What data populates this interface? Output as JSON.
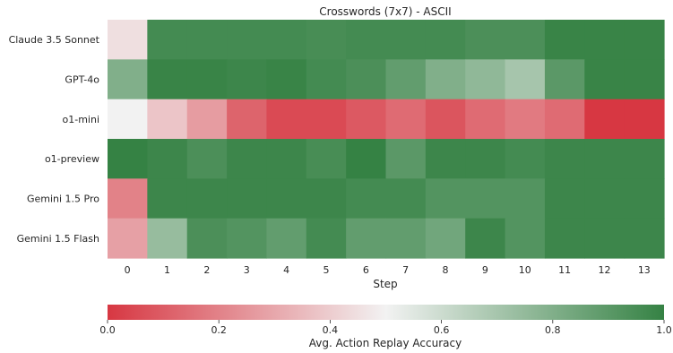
{
  "chart_data": {
    "type": "heatmap",
    "title": "Crosswords (7x7) - ASCII",
    "xlabel": "Step",
    "ylabel": "",
    "x": [
      "0",
      "1",
      "2",
      "3",
      "4",
      "5",
      "6",
      "7",
      "8",
      "9",
      "10",
      "11",
      "12",
      "13"
    ],
    "y": [
      "Claude 3.5 Sonnet",
      "GPT-4o",
      "o1-mini",
      "o1-preview",
      "Gemini 1.5 Pro",
      "Gemini 1.5 Flash"
    ],
    "values": [
      [
        0.45,
        0.96,
        0.96,
        0.96,
        0.96,
        0.95,
        0.96,
        0.96,
        0.96,
        0.94,
        0.94,
        0.99,
        0.99,
        0.99
      ],
      [
        0.8,
        0.99,
        0.99,
        0.98,
        0.99,
        0.96,
        0.94,
        0.88,
        0.8,
        0.76,
        0.7,
        0.9,
        0.99,
        0.99
      ],
      [
        0.5,
        0.38,
        0.27,
        0.12,
        0.05,
        0.05,
        0.09,
        0.14,
        0.08,
        0.14,
        0.18,
        0.14,
        0.0,
        0.0
      ],
      [
        1.0,
        0.98,
        0.94,
        0.98,
        0.98,
        0.95,
        1.0,
        0.9,
        0.98,
        0.98,
        0.96,
        0.98,
        0.98,
        0.98
      ],
      [
        0.2,
        0.98,
        0.98,
        0.98,
        0.98,
        0.98,
        0.96,
        0.96,
        0.92,
        0.92,
        0.92,
        0.98,
        0.98,
        0.98
      ],
      [
        0.28,
        0.74,
        0.94,
        0.92,
        0.88,
        0.96,
        0.88,
        0.88,
        0.84,
        0.98,
        0.92,
        0.98,
        0.98,
        0.98
      ]
    ],
    "colorbar": {
      "label": "Avg. Action Replay Accuracy",
      "range": [
        0.0,
        1.0
      ],
      "ticks": [
        "0.0",
        "0.2",
        "0.4",
        "0.6",
        "0.8",
        "1.0"
      ],
      "low_color": "#d73742",
      "mid_color": "#f2f2f2",
      "high_color": "#358244"
    }
  }
}
